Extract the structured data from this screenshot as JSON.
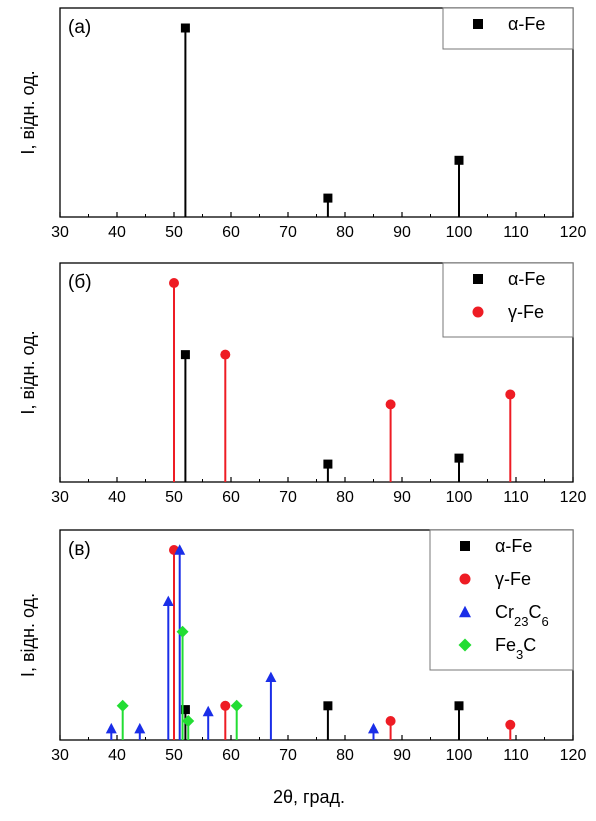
{
  "figure": {
    "xlabel": "2θ, град."
  },
  "chart_data": [
    {
      "type": "scatter",
      "panel_label": "(а)",
      "ylabel": "I, відн. од.",
      "xlim": [
        30,
        120
      ],
      "xticks": [
        30,
        40,
        50,
        60,
        70,
        80,
        90,
        100,
        110,
        120
      ],
      "ylim": [
        0,
        100
      ],
      "legend_position": "top-right",
      "series": [
        {
          "name": "α-Fe",
          "marker": "square",
          "color": "#000000",
          "points": [
            {
              "x": 52,
              "y": 100
            },
            {
              "x": 77,
              "y": 10
            },
            {
              "x": 100,
              "y": 30
            }
          ]
        }
      ]
    },
    {
      "type": "scatter",
      "panel_label": "(б)",
      "ylabel": "I, відн. од.",
      "xlim": [
        30,
        120
      ],
      "xticks": [
        30,
        40,
        50,
        60,
        70,
        80,
        90,
        100,
        110,
        120
      ],
      "ylim": [
        0,
        100
      ],
      "legend_position": "top-right",
      "series": [
        {
          "name": "α-Fe",
          "marker": "square",
          "color": "#000000",
          "points": [
            {
              "x": 52,
              "y": 64
            },
            {
              "x": 77,
              "y": 9
            },
            {
              "x": 100,
              "y": 12
            }
          ]
        },
        {
          "name": "γ-Fe",
          "marker": "circle",
          "color": "#ee1c24",
          "points": [
            {
              "x": 50,
              "y": 100
            },
            {
              "x": 59,
              "y": 64
            },
            {
              "x": 88,
              "y": 39
            },
            {
              "x": 109,
              "y": 44
            }
          ]
        }
      ]
    },
    {
      "type": "scatter",
      "panel_label": "(в)",
      "ylabel": "I, відн. од.",
      "xlim": [
        30,
        120
      ],
      "xticks": [
        30,
        40,
        50,
        60,
        70,
        80,
        90,
        100,
        110,
        120
      ],
      "ylim": [
        0,
        100
      ],
      "legend_position": "top-right",
      "series": [
        {
          "name": "α-Fe",
          "marker": "square",
          "color": "#000000",
          "points": [
            {
              "x": 52,
              "y": 16
            },
            {
              "x": 77,
              "y": 18
            },
            {
              "x": 100,
              "y": 18
            }
          ]
        },
        {
          "name": "γ-Fe",
          "marker": "circle",
          "color": "#ee1c24",
          "points": [
            {
              "x": 50,
              "y": 100
            },
            {
              "x": 59,
              "y": 18
            },
            {
              "x": 88,
              "y": 10
            },
            {
              "x": 109,
              "y": 8
            }
          ]
        },
        {
          "name": "Cr23C6",
          "marker": "triangle",
          "color": "#1a2ee8",
          "points": [
            {
              "x": 39,
              "y": 6
            },
            {
              "x": 44,
              "y": 6
            },
            {
              "x": 49,
              "y": 73
            },
            {
              "x": 51,
              "y": 100
            },
            {
              "x": 56,
              "y": 15
            },
            {
              "x": 67,
              "y": 33
            },
            {
              "x": 85,
              "y": 6
            }
          ]
        },
        {
          "name": "Fe3C",
          "marker": "diamond",
          "color": "#22dd33",
          "points": [
            {
              "x": 41,
              "y": 18
            },
            {
              "x": 51.5,
              "y": 57
            },
            {
              "x": 52.5,
              "y": 10
            },
            {
              "x": 61,
              "y": 18
            }
          ]
        }
      ]
    }
  ]
}
